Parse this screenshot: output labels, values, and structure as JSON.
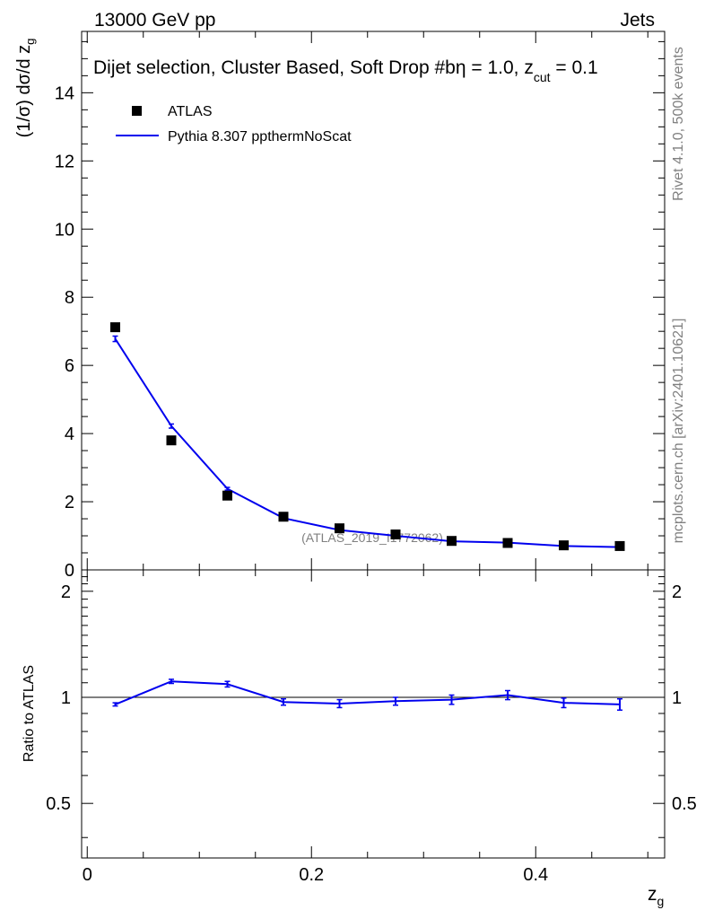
{
  "header": {
    "energy_label": "13000 GeV pp",
    "category_label": "Jets"
  },
  "side_labels": {
    "rivet": "Rivet 4.1.0,  500k events",
    "mcplots": "mcplots.cern.ch [arXiv:2401.10621]"
  },
  "chart_data": [
    {
      "type": "scatter+line",
      "title": "Dijet selection, Cluster Based, Soft Drop #b",
      "title_suffix_eta": "η = 1.0, z",
      "title_suffix_sub": "cut",
      "title_suffix_end": " = 0.1",
      "ylabel": "(1/σ) dσ/d z",
      "ylabel_sub": "g",
      "xlim": [
        -0.005,
        0.515
      ],
      "ylim": [
        0,
        15.8
      ],
      "y_ticks": [
        0,
        2,
        4,
        6,
        8,
        10,
        12,
        14
      ],
      "y_tick_labels": [
        "0",
        "2",
        "4",
        "6",
        "8",
        "10",
        "12",
        "14"
      ],
      "watermark": "(ATLAS_2019_I1772062)",
      "legend": [
        {
          "name": "ATLAS",
          "marker": "square"
        },
        {
          "name": "Pythia 8.307 ppthermNoScat",
          "marker": "line"
        }
      ],
      "series": [
        {
          "name": "ATLAS",
          "color": "#000000",
          "x": [
            0.025,
            0.075,
            0.125,
            0.175,
            0.225,
            0.275,
            0.325,
            0.375,
            0.425,
            0.475
          ],
          "y": [
            7.12,
            3.8,
            2.18,
            1.56,
            1.22,
            1.04,
            0.85,
            0.79,
            0.72,
            0.7
          ]
        },
        {
          "name": "Pythia 8.307 ppthermNoScat",
          "color": "#0000ee",
          "x": [
            0.025,
            0.075,
            0.125,
            0.175,
            0.225,
            0.275,
            0.325,
            0.375,
            0.425,
            0.475
          ],
          "y": [
            6.78,
            4.22,
            2.38,
            1.52,
            1.17,
            1.0,
            0.84,
            0.8,
            0.7,
            0.67
          ],
          "err": [
            0.08,
            0.06,
            0.04,
            0.03,
            0.03,
            0.02,
            0.02,
            0.02,
            0.02,
            0.02
          ]
        }
      ]
    },
    {
      "type": "line",
      "ylabel": "Ratio to ATLAS",
      "xlabel": "z",
      "xlabel_sub": "g",
      "xlim": [
        -0.005,
        0.515
      ],
      "ylim": [
        0.35,
        2.3
      ],
      "x_ticks": [
        0,
        0.2,
        0.4
      ],
      "x_tick_labels": [
        "0",
        "0.2",
        "0.4"
      ],
      "y_ticks": [
        0.5,
        1,
        2
      ],
      "y_tick_labels": [
        "0.5",
        "1",
        "2"
      ],
      "reference_line": 1,
      "series": [
        {
          "name": "Pythia 8.307 ppthermNoScat / ATLAS",
          "color": "#0000ee",
          "x": [
            0.025,
            0.075,
            0.125,
            0.175,
            0.225,
            0.275,
            0.325,
            0.375,
            0.425,
            0.475
          ],
          "y": [
            0.955,
            1.11,
            1.09,
            0.97,
            0.96,
            0.975,
            0.985,
            1.015,
            0.965,
            0.955
          ],
          "err": [
            0.01,
            0.015,
            0.02,
            0.02,
            0.025,
            0.025,
            0.03,
            0.03,
            0.03,
            0.035
          ]
        }
      ]
    }
  ]
}
